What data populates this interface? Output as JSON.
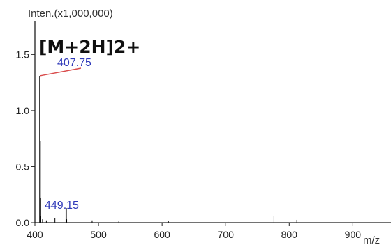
{
  "chart_data": {
    "type": "line",
    "ylabel": "Inten.(x1,000,000)",
    "xlabel": "m/z",
    "annotation": "[M+2H]2+",
    "xlim": [
      400,
      960
    ],
    "ylim": [
      0,
      1.8
    ],
    "x_ticks": [
      400,
      500,
      600,
      700,
      800,
      900
    ],
    "y_ticks": [
      0.0,
      0.5,
      1.0,
      1.5
    ],
    "x_tick_labels": [
      "400",
      "500",
      "600",
      "700",
      "800",
      "900"
    ],
    "y_tick_labels": [
      "0.0",
      "0.5",
      "1.0",
      "1.5"
    ],
    "grid": false,
    "legend": false,
    "peaks": [
      {
        "mz": 407.75,
        "intensity": 1.31,
        "label": "407.75"
      },
      {
        "mz": 408.25,
        "intensity": 0.73
      },
      {
        "mz": 408.75,
        "intensity": 0.22
      },
      {
        "mz": 409.25,
        "intensity": 0.06
      },
      {
        "mz": 412.0,
        "intensity": 0.03
      },
      {
        "mz": 418.0,
        "intensity": 0.02
      },
      {
        "mz": 431.5,
        "intensity": 0.04
      },
      {
        "mz": 449.15,
        "intensity": 0.13,
        "label": "449.15"
      },
      {
        "mz": 450.0,
        "intensity": 0.03
      },
      {
        "mz": 490.0,
        "intensity": 0.02
      },
      {
        "mz": 532.0,
        "intensity": 0.015
      },
      {
        "mz": 610.0,
        "intensity": 0.015
      },
      {
        "mz": 776.0,
        "intensity": 0.06
      },
      {
        "mz": 812.0,
        "intensity": 0.025
      }
    ],
    "colors": {
      "spectrum": "#000000",
      "peak_label": "#2f39b9",
      "callout": "#d94c4c",
      "axis": "#1f1f1f"
    }
  }
}
